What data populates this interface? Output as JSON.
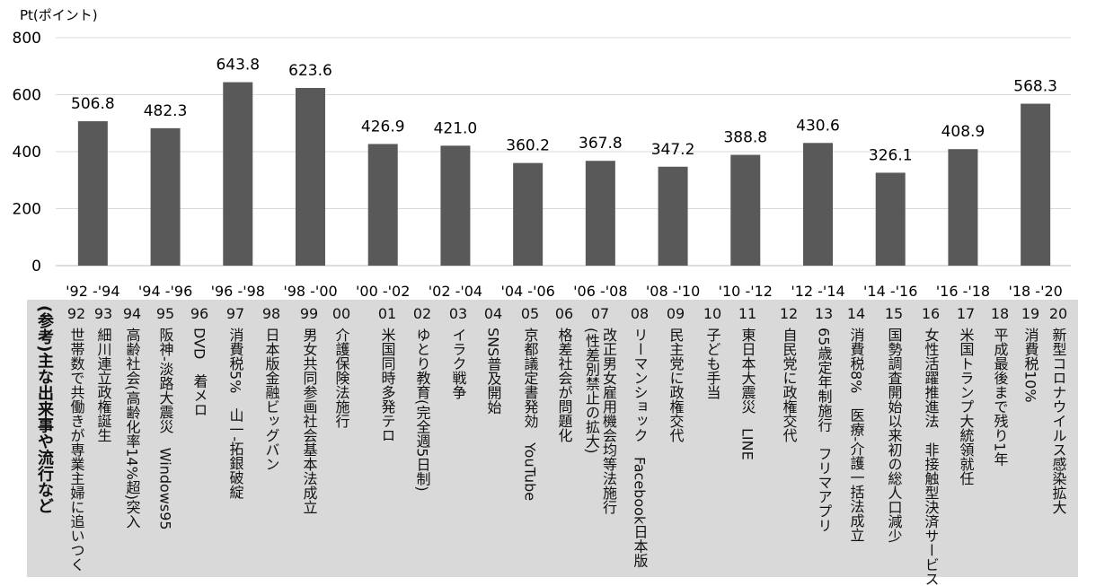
{
  "chart_data": {
    "type": "bar",
    "ylabel": "Pt(ポイント)",
    "ylim": [
      0,
      800
    ],
    "yticks": [
      0,
      200,
      400,
      600,
      800
    ],
    "grid": true,
    "categories": [
      "'92 -'94",
      "'94 -'96",
      "'96 -'98",
      "'98 -'00",
      "'00 -'02",
      "'02 -'04",
      "'04 -'06",
      "'06 -'08",
      "'08 -'10",
      "'10 -'12",
      "'12 -'14",
      "'14 -'16",
      "'16 -'18",
      "'18 -'20"
    ],
    "values": [
      506.8,
      482.3,
      643.8,
      623.6,
      426.9,
      421.0,
      360.2,
      367.8,
      347.2,
      388.8,
      430.6,
      326.1,
      408.9,
      568.3
    ],
    "value_labels": [
      "506.8",
      "482.3",
      "643.8",
      "623.6",
      "426.9",
      "421.0",
      "360.2",
      "367.8",
      "347.2",
      "388.8",
      "430.6",
      "326.1",
      "408.9",
      "568.3"
    ],
    "bar_color": "#595959"
  },
  "events": {
    "title": "(参考)主な出来事や流行など",
    "items": [
      {
        "year": "92",
        "text": "世帯数で共働きが専業主婦に追いつく"
      },
      {
        "year": "93",
        "text": "細川連立政権誕生"
      },
      {
        "year": "94",
        "text": "高齢社会(高齢化率14%超)突入"
      },
      {
        "year": "95",
        "text": "阪神-淡路大震災　Windows95"
      },
      {
        "year": "96",
        "text": "DVD　着メロ"
      },
      {
        "year": "97",
        "text": "消費税5%　山一-拓銀破綻"
      },
      {
        "year": "98",
        "text": "日本版金融ビッグバン"
      },
      {
        "year": "99",
        "text": "男女共同参画社会基本法成立"
      },
      {
        "year": "00",
        "text": "介護保険法施行"
      },
      {
        "year": "01",
        "text": "米国同時多発テロ"
      },
      {
        "year": "02",
        "text": "ゆとり教育(完全週5日制)"
      },
      {
        "year": "03",
        "text": "イラク戦争"
      },
      {
        "year": "04",
        "text": "SNS普及開始"
      },
      {
        "year": "05",
        "text": "京都議定書発効　YouTube"
      },
      {
        "year": "06",
        "text": "格差社会が問題化"
      },
      {
        "year": "07",
        "text": "改正男女雇用機会均等法施行\n(性差別禁止の拡大)"
      },
      {
        "year": "08",
        "text": "リーマンショック　Facebook日本版"
      },
      {
        "year": "09",
        "text": "民主党に政権交代"
      },
      {
        "year": "10",
        "text": "子ども手当"
      },
      {
        "year": "11",
        "text": "東日本大震災　LINE"
      },
      {
        "year": "12",
        "text": "自民党に政権交代"
      },
      {
        "year": "13",
        "text": "65歳定年制施行　フリマアプリ"
      },
      {
        "year": "14",
        "text": "消費税8%　医療-介護一括法成立"
      },
      {
        "year": "15",
        "text": "国勢調査開始以来初の総人口減少"
      },
      {
        "year": "16",
        "text": "女性活躍推進法　非接触型決済サービス"
      },
      {
        "year": "17",
        "text": "米国トランプ大統領就任"
      },
      {
        "year": "18",
        "text": "平成最後まで残り1年"
      },
      {
        "year": "19",
        "text": "消費税10%"
      },
      {
        "year": "20",
        "text": "新型コロナウイルス感染拡大"
      }
    ]
  }
}
